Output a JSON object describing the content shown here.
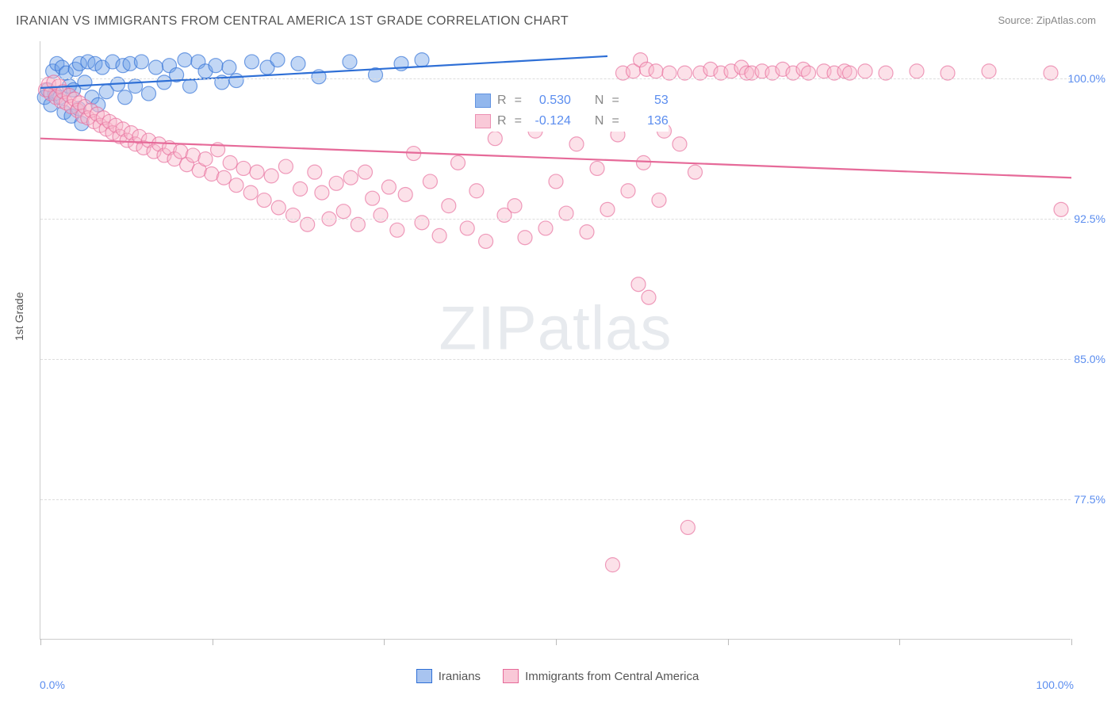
{
  "title": "IRANIAN VS IMMIGRANTS FROM CENTRAL AMERICA 1ST GRADE CORRELATION CHART",
  "source_label": "Source: ZipAtlas.com",
  "ylabel": "1st Grade",
  "watermark": {
    "part1": "ZIP",
    "part2": "atlas"
  },
  "chart": {
    "type": "scatter",
    "xlim": [
      0,
      100
    ],
    "ylim": [
      70,
      102
    ],
    "xtick_labels": [
      "0.0%",
      "100.0%"
    ],
    "xtick_positions": [
      0,
      100
    ],
    "vgrid_positions": [
      0,
      16.67,
      33.33,
      50,
      66.67,
      83.33,
      100
    ],
    "ytick_labels": [
      "100.0%",
      "92.5%",
      "85.0%",
      "77.5%"
    ],
    "ytick_positions": [
      100,
      92.5,
      85,
      77.5
    ],
    "background_color": "#ffffff",
    "grid_color": "#dddddd",
    "axis_color": "#cccccc",
    "tick_label_color": "#5b8def",
    "marker_radius": 9,
    "marker_opacity": 0.42,
    "marker_stroke_width": 1.2,
    "line_width": 2.2,
    "series": [
      {
        "name": "Iranians",
        "color_fill": "#6ea0e8",
        "color_stroke": "#2e6fd6",
        "line_color": "#2e6fd6",
        "r_value": "0.530",
        "n_value": "53",
        "trend": {
          "x1": 0,
          "y1": 99.5,
          "x2": 55,
          "y2": 101.2
        },
        "points": [
          [
            0.4,
            99.0
          ],
          [
            0.7,
            99.4
          ],
          [
            1.0,
            98.6
          ],
          [
            1.2,
            100.4
          ],
          [
            1.4,
            99.2
          ],
          [
            1.6,
            100.8
          ],
          [
            1.9,
            99.0
          ],
          [
            2.1,
            100.6
          ],
          [
            2.3,
            98.2
          ],
          [
            2.5,
            100.3
          ],
          [
            2.8,
            99.6
          ],
          [
            3.0,
            98.0
          ],
          [
            3.2,
            99.4
          ],
          [
            3.4,
            100.5
          ],
          [
            3.7,
            98.4
          ],
          [
            3.8,
            100.8
          ],
          [
            4.0,
            97.6
          ],
          [
            4.3,
            99.8
          ],
          [
            4.6,
            100.9
          ],
          [
            5.0,
            99.0
          ],
          [
            5.3,
            100.8
          ],
          [
            5.6,
            98.6
          ],
          [
            6.0,
            100.6
          ],
          [
            6.4,
            99.3
          ],
          [
            7.0,
            100.9
          ],
          [
            7.5,
            99.7
          ],
          [
            8.0,
            100.7
          ],
          [
            8.2,
            99.0
          ],
          [
            8.7,
            100.8
          ],
          [
            9.2,
            99.6
          ],
          [
            9.8,
            100.9
          ],
          [
            10.5,
            99.2
          ],
          [
            11.2,
            100.6
          ],
          [
            12.0,
            99.8
          ],
          [
            12.5,
            100.7
          ],
          [
            13.2,
            100.2
          ],
          [
            14.0,
            101.0
          ],
          [
            14.5,
            99.6
          ],
          [
            15.3,
            100.9
          ],
          [
            16.0,
            100.4
          ],
          [
            17.0,
            100.7
          ],
          [
            17.6,
            99.8
          ],
          [
            18.3,
            100.6
          ],
          [
            19.0,
            99.9
          ],
          [
            20.5,
            100.9
          ],
          [
            22.0,
            100.6
          ],
          [
            23.0,
            101.0
          ],
          [
            25.0,
            100.8
          ],
          [
            27.0,
            100.1
          ],
          [
            30.0,
            100.9
          ],
          [
            32.5,
            100.2
          ],
          [
            35.0,
            100.8
          ],
          [
            37.0,
            101.0
          ]
        ]
      },
      {
        "name": "Immigrants from Central America",
        "color_fill": "#f7b8cb",
        "color_stroke": "#e66a99",
        "line_color": "#e66a99",
        "r_value": "-0.124",
        "n_value": "136",
        "trend": {
          "x1": 0,
          "y1": 96.8,
          "x2": 100,
          "y2": 94.7
        },
        "points": [
          [
            0.5,
            99.4
          ],
          [
            0.8,
            99.7
          ],
          [
            1.0,
            99.2
          ],
          [
            1.3,
            99.8
          ],
          [
            1.5,
            99.0
          ],
          [
            1.8,
            99.6
          ],
          [
            2.0,
            98.8
          ],
          [
            2.2,
            99.3
          ],
          [
            2.5,
            98.7
          ],
          [
            2.8,
            99.1
          ],
          [
            3.0,
            98.5
          ],
          [
            3.3,
            98.9
          ],
          [
            3.6,
            98.3
          ],
          [
            3.8,
            98.7
          ],
          [
            4.1,
            98.0
          ],
          [
            4.3,
            98.5
          ],
          [
            4.6,
            97.9
          ],
          [
            4.9,
            98.3
          ],
          [
            5.2,
            97.7
          ],
          [
            5.5,
            98.1
          ],
          [
            5.8,
            97.5
          ],
          [
            6.1,
            97.9
          ],
          [
            6.4,
            97.3
          ],
          [
            6.7,
            97.7
          ],
          [
            7.0,
            97.1
          ],
          [
            7.3,
            97.5
          ],
          [
            7.7,
            96.9
          ],
          [
            8.0,
            97.3
          ],
          [
            8.4,
            96.7
          ],
          [
            8.8,
            97.1
          ],
          [
            9.2,
            96.5
          ],
          [
            9.6,
            96.9
          ],
          [
            10.0,
            96.3
          ],
          [
            10.5,
            96.7
          ],
          [
            11.0,
            96.1
          ],
          [
            11.5,
            96.5
          ],
          [
            12.0,
            95.9
          ],
          [
            12.5,
            96.3
          ],
          [
            13.0,
            95.7
          ],
          [
            13.6,
            96.1
          ],
          [
            14.2,
            95.4
          ],
          [
            14.8,
            95.9
          ],
          [
            15.4,
            95.1
          ],
          [
            16.0,
            95.7
          ],
          [
            16.6,
            94.9
          ],
          [
            17.2,
            96.2
          ],
          [
            17.8,
            94.7
          ],
          [
            18.4,
            95.5
          ],
          [
            19.0,
            94.3
          ],
          [
            19.7,
            95.2
          ],
          [
            20.4,
            93.9
          ],
          [
            21.0,
            95.0
          ],
          [
            21.7,
            93.5
          ],
          [
            22.4,
            94.8
          ],
          [
            23.1,
            93.1
          ],
          [
            23.8,
            95.3
          ],
          [
            24.5,
            92.7
          ],
          [
            25.2,
            94.1
          ],
          [
            25.9,
            92.2
          ],
          [
            26.6,
            95.0
          ],
          [
            27.3,
            93.9
          ],
          [
            28.0,
            92.5
          ],
          [
            28.7,
            94.4
          ],
          [
            29.4,
            92.9
          ],
          [
            30.1,
            94.7
          ],
          [
            30.8,
            92.2
          ],
          [
            31.5,
            95.0
          ],
          [
            32.2,
            93.6
          ],
          [
            33.0,
            92.7
          ],
          [
            33.8,
            94.2
          ],
          [
            34.6,
            91.9
          ],
          [
            35.4,
            93.8
          ],
          [
            36.2,
            96.0
          ],
          [
            37.0,
            92.3
          ],
          [
            37.8,
            94.5
          ],
          [
            38.7,
            91.6
          ],
          [
            39.6,
            93.2
          ],
          [
            40.5,
            95.5
          ],
          [
            41.4,
            92.0
          ],
          [
            42.3,
            94.0
          ],
          [
            43.2,
            91.3
          ],
          [
            44.1,
            96.8
          ],
          [
            45.0,
            92.7
          ],
          [
            46.0,
            93.2
          ],
          [
            47.0,
            91.5
          ],
          [
            48.0,
            97.2
          ],
          [
            49.0,
            92.0
          ],
          [
            50.0,
            94.5
          ],
          [
            51.0,
            92.8
          ],
          [
            52.0,
            96.5
          ],
          [
            53.0,
            91.8
          ],
          [
            54.0,
            95.2
          ],
          [
            55.0,
            93.0
          ],
          [
            55.5,
            74.0
          ],
          [
            56.0,
            97.0
          ],
          [
            56.5,
            100.3
          ],
          [
            57.0,
            94.0
          ],
          [
            57.5,
            100.4
          ],
          [
            58.0,
            89.0
          ],
          [
            58.2,
            101.0
          ],
          [
            58.5,
            95.5
          ],
          [
            58.8,
            100.5
          ],
          [
            59.0,
            88.3
          ],
          [
            59.5,
            98.0
          ],
          [
            59.7,
            100.4
          ],
          [
            60.0,
            93.5
          ],
          [
            60.5,
            97.2
          ],
          [
            61.0,
            100.3
          ],
          [
            62.0,
            96.5
          ],
          [
            62.5,
            100.3
          ],
          [
            62.8,
            76.0
          ],
          [
            63.5,
            95.0
          ],
          [
            64.0,
            100.3
          ],
          [
            65.0,
            100.5
          ],
          [
            66.0,
            100.3
          ],
          [
            67.0,
            100.4
          ],
          [
            68.0,
            100.6
          ],
          [
            68.5,
            100.3
          ],
          [
            69.0,
            100.3
          ],
          [
            70.0,
            100.4
          ],
          [
            71.0,
            100.3
          ],
          [
            72.0,
            100.5
          ],
          [
            73.0,
            100.3
          ],
          [
            74.0,
            100.5
          ],
          [
            74.5,
            100.3
          ],
          [
            76.0,
            100.4
          ],
          [
            77.0,
            100.3
          ],
          [
            78.0,
            100.4
          ],
          [
            78.5,
            100.3
          ],
          [
            80.0,
            100.4
          ],
          [
            82.0,
            100.3
          ],
          [
            85.0,
            100.4
          ],
          [
            88.0,
            100.3
          ],
          [
            92.0,
            100.4
          ],
          [
            98.0,
            100.3
          ],
          [
            99.0,
            93.0
          ]
        ]
      }
    ]
  },
  "legend_bottom": [
    {
      "label": "Iranians",
      "fill": "#a8c4f0",
      "stroke": "#2e6fd6"
    },
    {
      "label": "Immigrants from Central America",
      "fill": "#f9c8d7",
      "stroke": "#e66a99"
    }
  ]
}
